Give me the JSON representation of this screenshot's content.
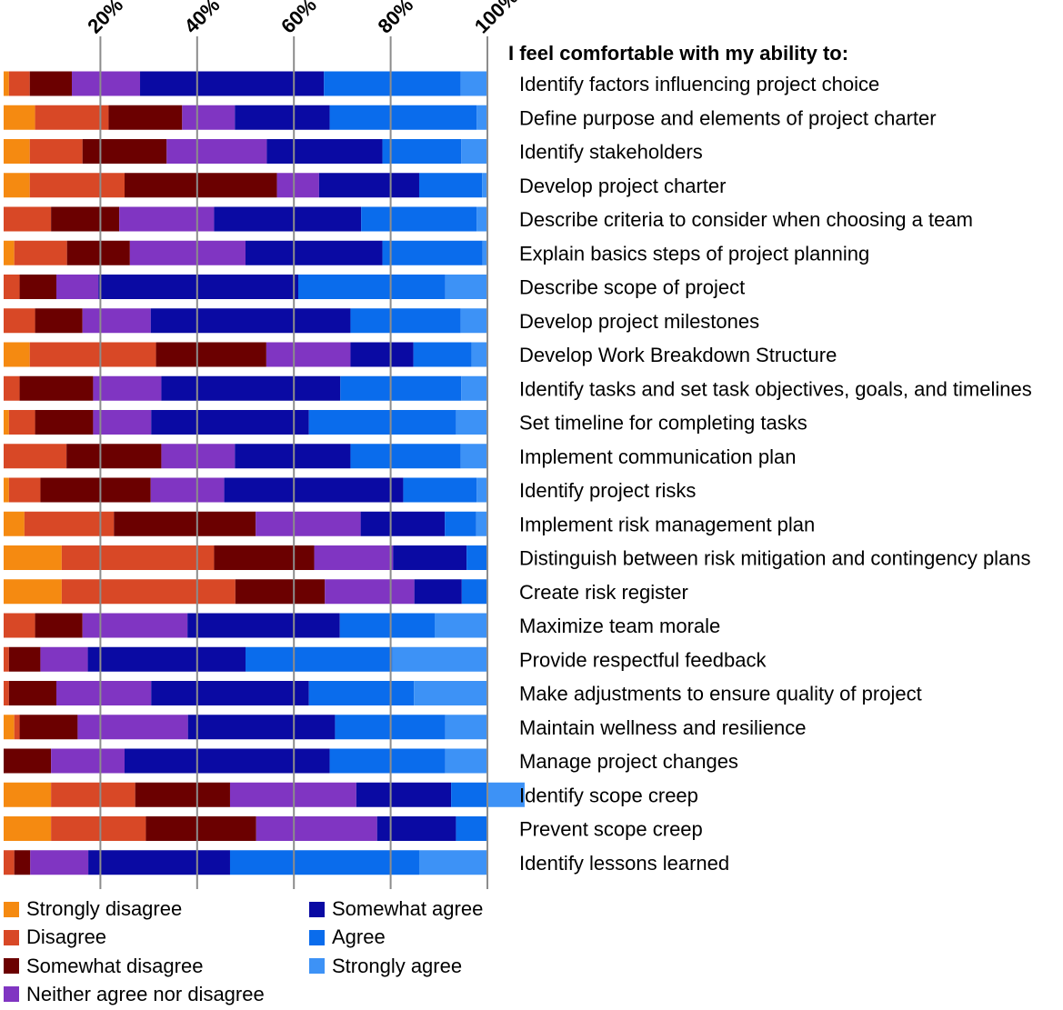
{
  "chart_data": {
    "type": "bar",
    "orientation": "horizontal",
    "stacked": true,
    "title": "I feel comfortable with my ability to:",
    "xlim": [
      0,
      100
    ],
    "xticks": [
      20,
      40,
      60,
      80,
      100
    ],
    "xtick_labels": [
      "20%",
      "40%",
      "60%",
      "80%",
      "100%"
    ],
    "grid": true,
    "legend_position": "bottom",
    "categories": [
      "Identify factors influencing project choice",
      "Define purpose and elements of project charter",
      "Identify stakeholders",
      "Develop project charter",
      "Describe criteria to consider when choosing a team",
      "Explain basics steps of project planning",
      "Describe scope of project",
      "Develop project milestones",
      "Develop Work Breakdown Structure",
      "Identify tasks and set task objectives, goals, and timelines",
      "Set timeline for completing tasks",
      "Implement communication plan",
      "Identify project risks",
      "Implement risk management plan",
      "Distinguish between risk mitigation and contingency plans",
      "Create risk register",
      "Maximize team morale",
      "Provide respectful feedback",
      "Make adjustments to ensure quality of project",
      "Maintain wellness and resilience",
      "Manage project changes",
      "Identify scope creep",
      "Prevent scope creep",
      "Identify lessons learned"
    ],
    "series": [
      {
        "name": "Strongly disagree",
        "color": "#f58a11",
        "values": [
          1.1,
          6.5,
          5.4,
          5.4,
          0,
          2.2,
          0,
          0,
          5.4,
          0,
          1.1,
          0,
          1.1,
          4.3,
          12,
          12,
          0,
          0,
          0,
          2.2,
          0,
          9.8,
          9.8,
          0
        ]
      },
      {
        "name": "Disagree",
        "color": "#d84826",
        "values": [
          4.3,
          15.2,
          10.9,
          19.6,
          9.8,
          10.9,
          3.3,
          6.5,
          26.1,
          3.3,
          5.4,
          13,
          6.5,
          18.5,
          31.5,
          35.9,
          6.5,
          1.1,
          1.1,
          1.1,
          0,
          17.4,
          19.6,
          2.2
        ]
      },
      {
        "name": "Somewhat disagree",
        "color": "#6b0000",
        "values": [
          8.7,
          15.2,
          17.4,
          31.5,
          14.1,
          13,
          7.6,
          9.8,
          22.8,
          15.2,
          12,
          19.6,
          22.8,
          29.3,
          20.7,
          18.5,
          9.8,
          6.5,
          9.8,
          12,
          9.8,
          19.6,
          22.8,
          3.3
        ]
      },
      {
        "name": "Neither agree nor disagree",
        "color": "#8035c2",
        "values": [
          14.1,
          10.9,
          20.7,
          8.7,
          19.6,
          23.9,
          8.7,
          14.1,
          17.4,
          14.1,
          12,
          15.2,
          15.2,
          21.7,
          16.3,
          18.5,
          21.7,
          9.8,
          19.6,
          22.8,
          15.2,
          26.1,
          25,
          12
        ]
      },
      {
        "name": "Somewhat agree",
        "color": "#0a0aa3",
        "values": [
          38,
          19.6,
          23.9,
          20.7,
          30.4,
          28.3,
          41.3,
          41.3,
          13,
          37,
          32.6,
          23.9,
          37,
          17.4,
          15.2,
          9.8,
          31.5,
          32.6,
          32.6,
          30.4,
          42.4,
          19.6,
          16.3,
          29.3
        ]
      },
      {
        "name": "Agree",
        "color": "#0a6cec",
        "values": [
          28.3,
          30.4,
          16.3,
          13,
          23.9,
          20.7,
          30.4,
          22.8,
          12,
          25,
          30.4,
          22.8,
          15.2,
          6.5,
          4.3,
          5.4,
          19.6,
          30.4,
          21.7,
          22.8,
          23.9,
          7.6,
          6.5,
          39.1
        ]
      },
      {
        "name": "Strongly agree",
        "color": "#3d92f6",
        "values": [
          5.4,
          2.2,
          5.4,
          1.1,
          2.2,
          1.1,
          8.7,
          5.4,
          3.3,
          5.4,
          6.5,
          5.4,
          2.2,
          2.2,
          0,
          0,
          10.9,
          19.6,
          15.2,
          8.7,
          8.7,
          7.6,
          0,
          14.1
        ]
      }
    ]
  }
}
